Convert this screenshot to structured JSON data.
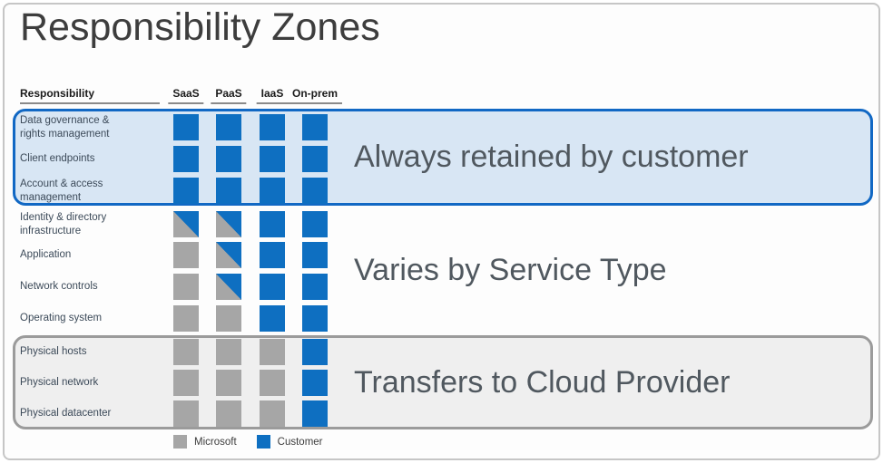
{
  "title": "Responsibility Zones",
  "header": {
    "responsibility_label": "Responsibility",
    "columns": [
      "SaaS",
      "PaaS",
      "IaaS",
      "On-prem"
    ]
  },
  "zones": [
    {
      "id": "always",
      "label": "Always retained by customer",
      "style": "blue-box"
    },
    {
      "id": "varies",
      "label": "Varies by Service Type",
      "style": "none"
    },
    {
      "id": "transfers",
      "label": "Transfers to Cloud Provider",
      "style": "gray-box"
    }
  ],
  "matrix": {
    "cell_values_legend": "customer = blue, microsoft = gray, shared = diagonal split (gray lower-left / blue upper-right)",
    "rows": [
      {
        "label": "Data governance & rights management",
        "zone": "always",
        "cells": [
          "customer",
          "customer",
          "customer",
          "customer"
        ]
      },
      {
        "label": "Client endpoints",
        "zone": "always",
        "cells": [
          "customer",
          "customer",
          "customer",
          "customer"
        ]
      },
      {
        "label": "Account & access management",
        "zone": "always",
        "cells": [
          "customer",
          "customer",
          "customer",
          "customer"
        ]
      },
      {
        "label": "Identity & directory infrastructure",
        "zone": "varies",
        "cells": [
          "shared",
          "shared",
          "customer",
          "customer"
        ]
      },
      {
        "label": "Application",
        "zone": "varies",
        "cells": [
          "microsoft",
          "shared",
          "customer",
          "customer"
        ]
      },
      {
        "label": "Network controls",
        "zone": "varies",
        "cells": [
          "microsoft",
          "shared",
          "customer",
          "customer"
        ]
      },
      {
        "label": "Operating system",
        "zone": "varies",
        "cells": [
          "microsoft",
          "microsoft",
          "customer",
          "customer"
        ]
      },
      {
        "label": "Physical hosts",
        "zone": "transfers",
        "cells": [
          "microsoft",
          "microsoft",
          "microsoft",
          "customer"
        ]
      },
      {
        "label": "Physical network",
        "zone": "transfers",
        "cells": [
          "microsoft",
          "microsoft",
          "microsoft",
          "customer"
        ]
      },
      {
        "label": "Physical datacenter",
        "zone": "transfers",
        "cells": [
          "microsoft",
          "microsoft",
          "microsoft",
          "customer"
        ]
      }
    ]
  },
  "legend": {
    "items": [
      {
        "label": "Microsoft",
        "owner": "microsoft"
      },
      {
        "label": "Customer",
        "owner": "customer"
      }
    ]
  },
  "colors": {
    "customer_blue": "#0e6fc1",
    "microsoft_gray": "#a6a6a6",
    "always_zone_fill": "#d8e6f4",
    "always_zone_border": "#1168c4",
    "transfers_zone_fill": "#efefef",
    "transfers_zone_border": "#9b9b9b"
  }
}
